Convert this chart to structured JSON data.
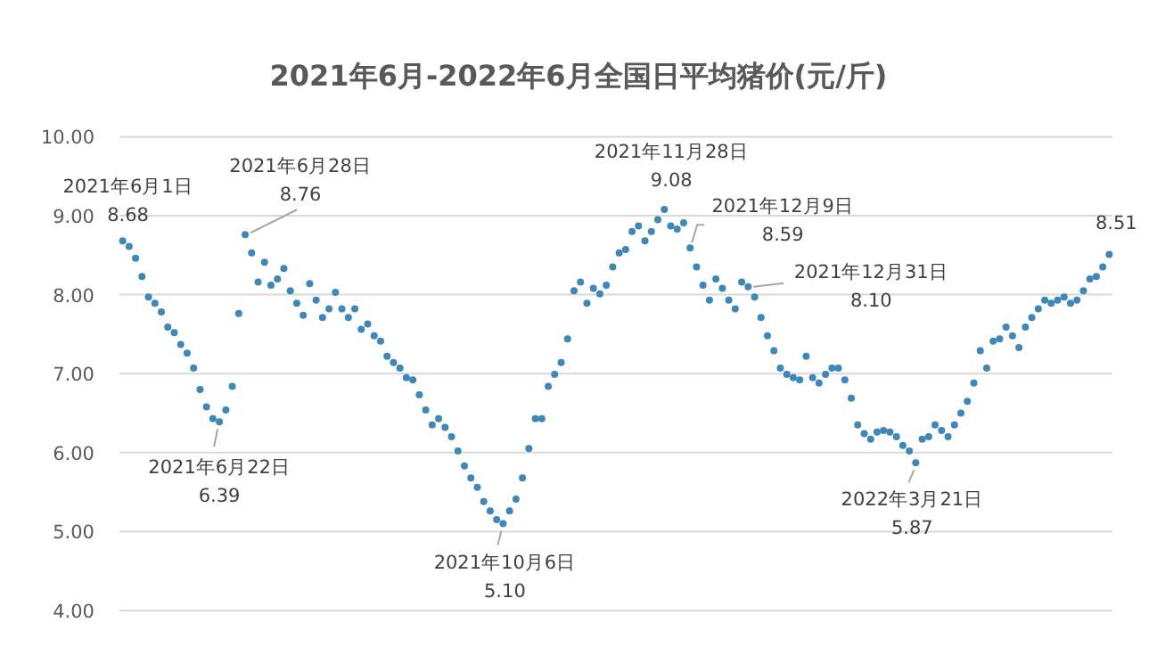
{
  "chart_data": {
    "type": "scatter",
    "title": "2021年6月-2022年6月全国日平均猪价(元/斤)",
    "marker": "circle",
    "grid": "y",
    "tick_labels": "y",
    "categories": [
      null,
      null,
      null,
      null,
      null,
      null,
      null,
      null,
      null,
      null,
      null,
      null,
      null,
      null,
      null,
      null,
      null,
      null,
      null,
      null,
      null,
      null,
      null,
      null,
      null,
      null,
      null,
      null,
      null,
      null,
      null,
      null,
      null,
      null,
      null,
      null,
      null,
      null,
      null,
      null,
      null,
      null,
      null,
      null,
      null,
      null,
      null,
      null,
      null,
      null,
      null,
      null,
      null,
      null,
      null,
      null,
      null,
      null,
      null,
      null,
      null,
      null,
      null,
      null,
      null,
      null,
      null,
      null,
      null,
      null,
      null,
      null,
      null,
      null,
      null,
      null,
      null,
      null,
      null,
      null,
      null,
      null,
      null,
      null,
      null,
      null,
      null,
      null,
      null,
      null,
      null,
      null,
      null,
      null,
      null,
      null,
      null,
      null,
      null,
      null,
      null,
      null,
      null,
      null,
      null,
      null,
      null,
      null,
      null,
      null,
      null,
      null,
      null,
      null,
      null,
      null,
      null,
      null,
      null,
      null,
      null,
      null,
      null,
      null,
      null,
      null,
      null,
      null,
      null,
      null,
      null,
      null,
      null,
      null,
      null,
      null,
      null,
      null,
      null,
      null,
      null,
      null,
      null,
      null,
      null,
      null,
      null,
      null,
      null,
      null,
      null,
      null,
      null,
      null
    ],
    "ylim": [
      4,
      10
    ],
    "yticks": [
      {
        "value": 4,
        "label": "4.00"
      },
      {
        "value": 5,
        "label": "5.00"
      },
      {
        "value": 6,
        "label": "6.00"
      },
      {
        "value": 7,
        "label": "7.00"
      },
      {
        "value": 8,
        "label": "8.00"
      },
      {
        "value": 9,
        "label": "9.00"
      },
      {
        "value": 10,
        "label": "10.00"
      }
    ],
    "series": [
      {
        "color": "#3d88b8",
        "values": [
          8.68,
          8.61,
          8.46,
          8.23,
          7.97,
          7.89,
          7.78,
          7.59,
          7.52,
          7.37,
          7.26,
          7.07,
          6.8,
          6.58,
          6.43,
          6.39,
          6.54,
          6.84,
          7.76,
          8.76,
          8.53,
          8.16,
          8.41,
          8.12,
          8.2,
          8.33,
          8.05,
          7.89,
          7.74,
          8.14,
          7.93,
          7.71,
          7.82,
          8.03,
          7.82,
          7.71,
          7.82,
          7.56,
          7.63,
          7.48,
          7.41,
          7.22,
          7.14,
          7.07,
          6.95,
          6.92,
          6.73,
          6.54,
          6.35,
          6.43,
          6.32,
          6.2,
          6.02,
          5.83,
          5.68,
          5.56,
          5.38,
          5.26,
          5.15,
          5.1,
          5.26,
          5.41,
          5.68,
          6.05,
          6.43,
          6.43,
          6.84,
          6.99,
          7.14,
          7.44,
          8.05,
          8.16,
          7.89,
          8.08,
          8.01,
          8.12,
          8.35,
          8.53,
          8.57,
          8.8,
          8.87,
          8.68,
          8.8,
          8.95,
          9.08,
          8.87,
          8.83,
          8.91,
          8.59,
          8.35,
          8.12,
          7.93,
          8.2,
          8.08,
          7.93,
          7.82,
          8.16,
          8.1,
          7.97,
          7.71,
          7.48,
          7.29,
          7.07,
          6.99,
          6.95,
          6.92,
          7.22,
          6.95,
          6.88,
          6.99,
          7.07,
          7.07,
          6.92,
          6.69,
          6.35,
          6.24,
          6.17,
          6.26,
          6.28,
          6.26,
          6.2,
          6.09,
          6.02,
          5.87,
          6.17,
          6.2,
          6.35,
          6.28,
          6.2,
          6.35,
          6.5,
          6.65,
          6.88,
          7.29,
          7.07,
          7.41,
          7.44,
          7.59,
          7.48,
          7.33,
          7.59,
          7.71,
          7.82,
          7.93,
          7.89,
          7.93,
          7.97,
          7.89,
          7.93,
          8.05,
          8.2,
          8.23,
          8.35,
          8.51
        ]
      }
    ],
    "annotations": [
      {
        "text": "2021年6月1日\n8.68",
        "y": 8.68
      },
      {
        "text": "2021年6月22日\n6.39",
        "y": 6.39
      },
      "2021年6月28日\n8.76",
      {
        "text": "2021年10月6日\n5.10",
        "y": 5.1
      },
      {
        "text": "2021年11月28日\n9.08",
        "y": 9.08
      },
      "2021年12月9日\n8.59",
      "2021年12月31日\n8.10",
      {
        "text": "2022年3月21日\n5.87",
        "y": 5.87
      },
      "8.51"
    ]
  }
}
